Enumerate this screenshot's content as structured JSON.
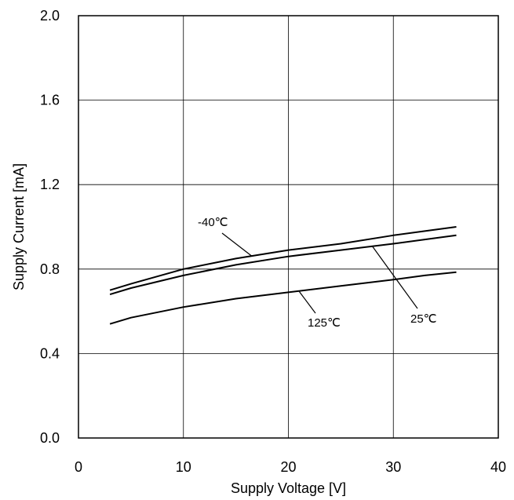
{
  "chart_data": {
    "type": "line",
    "xlabel": "Supply Voltage [V]",
    "ylabel": "Supply Current [mA]",
    "xlim": [
      0,
      40
    ],
    "ylim": [
      0.0,
      2.0
    ],
    "x_ticks": [
      0,
      10,
      20,
      30,
      40
    ],
    "y_ticks": [
      0.0,
      0.4,
      0.8,
      1.2,
      1.6,
      2.0
    ],
    "x_tick_labels": [
      "0",
      "10",
      "20",
      "30",
      "40"
    ],
    "y_tick_labels": [
      "0.0",
      "0.4",
      "0.8",
      "1.2",
      "1.6",
      "2.0"
    ],
    "grid": true,
    "series": [
      {
        "name": "-40℃",
        "x": [
          3,
          5,
          10,
          15,
          20,
          25,
          30,
          33,
          36
        ],
        "y": [
          0.7,
          0.73,
          0.8,
          0.85,
          0.89,
          0.92,
          0.96,
          0.98,
          1.0
        ]
      },
      {
        "name": "25℃",
        "x": [
          3,
          5,
          10,
          15,
          20,
          25,
          30,
          33,
          36
        ],
        "y": [
          0.68,
          0.71,
          0.77,
          0.82,
          0.86,
          0.89,
          0.92,
          0.94,
          0.96
        ]
      },
      {
        "name": "125℃",
        "x": [
          3,
          5,
          10,
          15,
          20,
          25,
          30,
          33,
          36
        ],
        "y": [
          0.54,
          0.57,
          0.62,
          0.66,
          0.69,
          0.72,
          0.75,
          0.77,
          0.785
        ]
      }
    ],
    "annotations": [
      {
        "text": "-40℃",
        "series": "-40℃"
      },
      {
        "text": "25℃",
        "series": "25℃"
      },
      {
        "text": "125℃",
        "series": "125℃"
      }
    ]
  }
}
